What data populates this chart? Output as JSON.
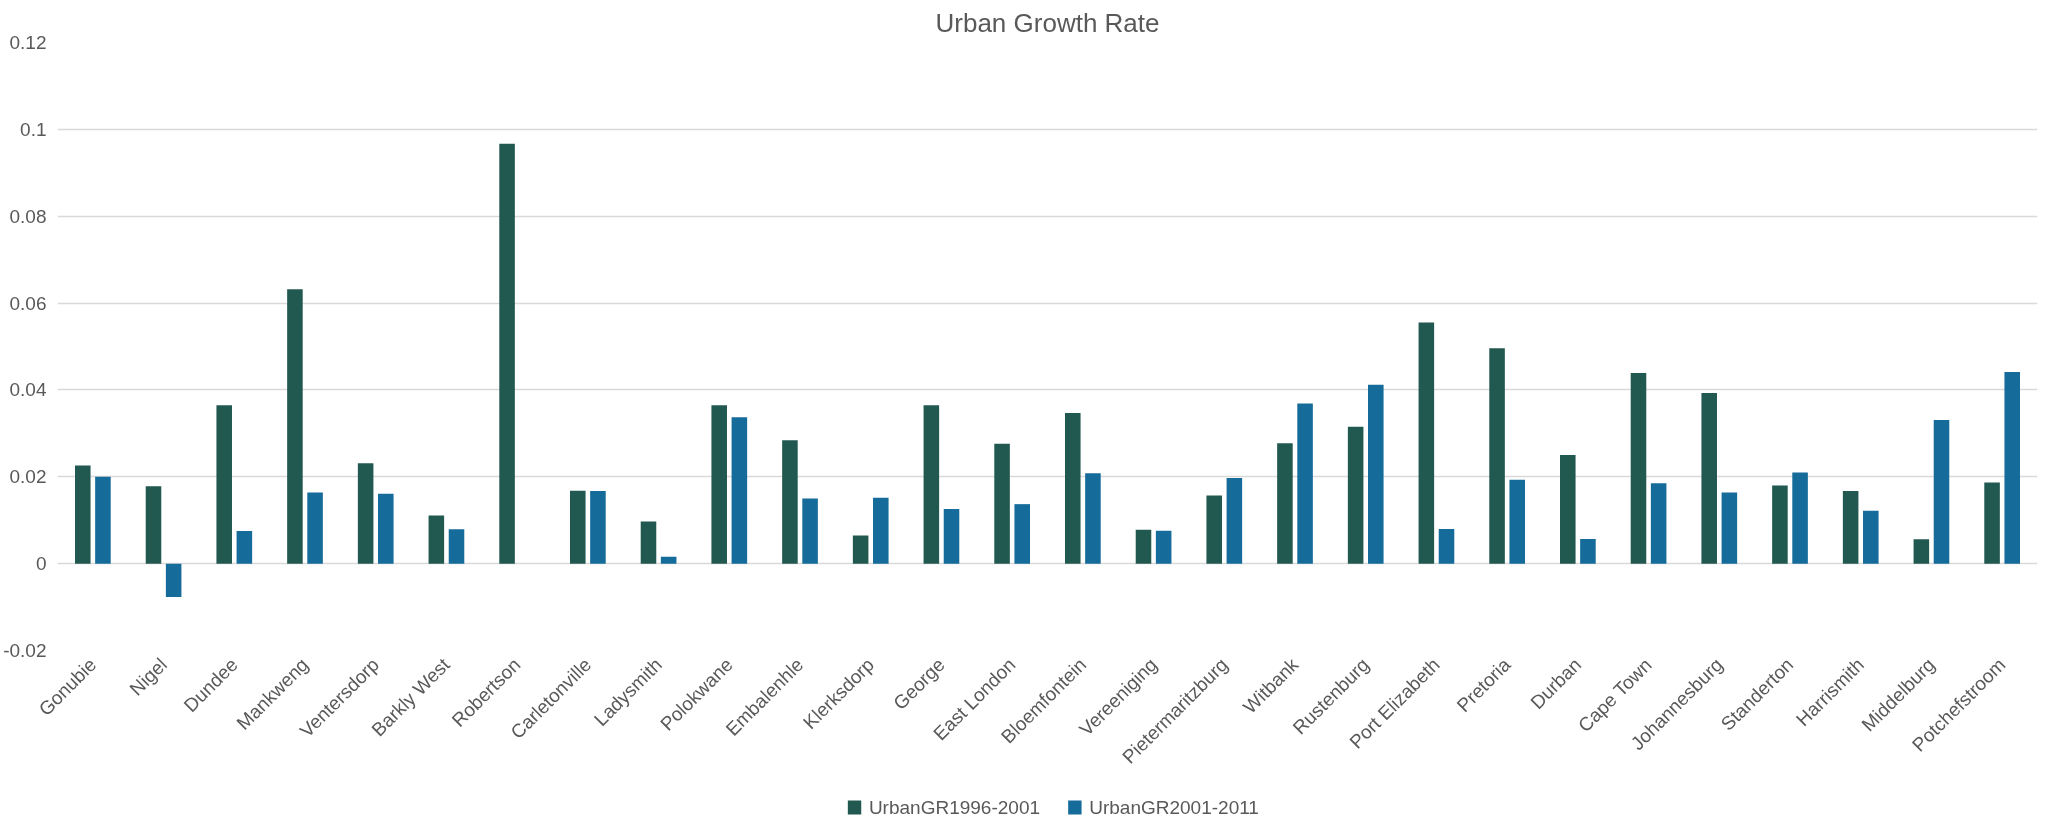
{
  "chart_data": {
    "type": "bar",
    "title": "Urban Growth Rate",
    "categories": [
      "Gonubie",
      "Nigel",
      "Dundee",
      "Mankweng",
      "Ventersdorp",
      "Barkly West",
      "Robertson",
      "Carletonville",
      "Ladysmith",
      "Polokwane",
      "Embalenhle",
      "Klerksdorp",
      "George",
      "East London",
      "Bloemfontein",
      "Vereeniging",
      "Pietermaritzburg",
      "Witbank",
      "Rustenburg",
      "Port Elizabeth",
      "Pretoria",
      "Durban",
      "Cape Town",
      "Johannesburg",
      "Standerton",
      "Harrismith",
      "Middelburg",
      "Potchefstroom"
    ],
    "series": [
      {
        "name": "UrbanGR1996-2001",
        "color": "#21584f",
        "values": [
          0.0226,
          0.0178,
          0.0365,
          0.0632,
          0.0231,
          0.0111,
          0.0967,
          0.0168,
          0.0097,
          0.0365,
          0.0284,
          0.0065,
          0.0365,
          0.0276,
          0.0347,
          0.0078,
          0.0157,
          0.0277,
          0.0315,
          0.0555,
          0.0496,
          0.025,
          0.0439,
          0.0393,
          0.018,
          0.0167,
          0.0056,
          0.0187
        ]
      },
      {
        "name": "UrbanGR2001-2011",
        "color": "#156b9a",
        "values": [
          0.02,
          -0.0077,
          0.0075,
          0.0164,
          0.0161,
          0.0079,
          null,
          0.0167,
          0.0016,
          0.0337,
          0.015,
          0.0152,
          0.0126,
          0.0137,
          0.0208,
          0.0076,
          0.0197,
          0.0369,
          0.0412,
          0.008,
          0.0193,
          0.0057,
          0.0185,
          0.0164,
          0.021,
          0.0122,
          0.0331,
          0.0441
        ]
      }
    ],
    "ylim": [
      -0.02,
      0.12
    ],
    "yticks": [
      -0.02,
      0,
      0.02,
      0.04,
      0.06,
      0.08,
      0.1,
      0.12
    ],
    "grid": "y",
    "legend": "bottom"
  }
}
